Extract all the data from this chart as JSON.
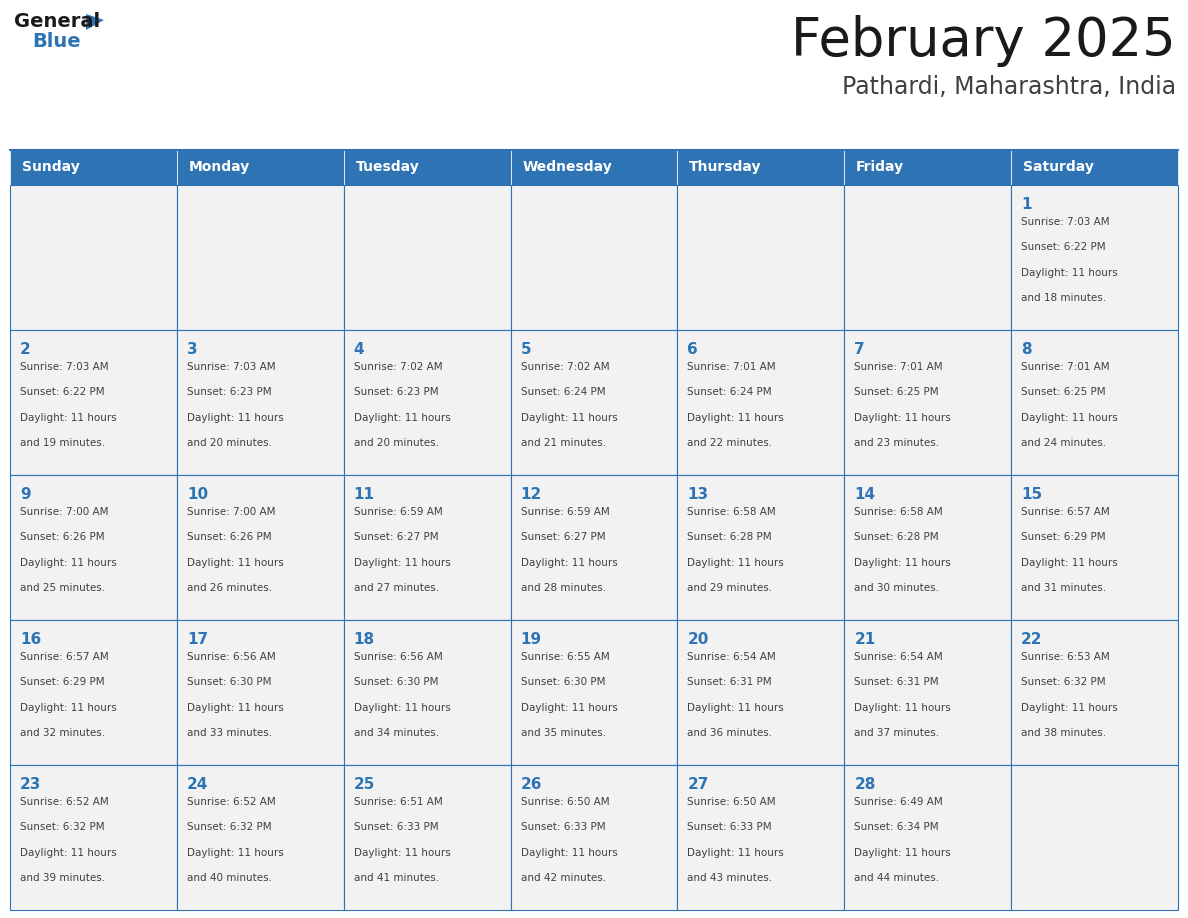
{
  "title": "February 2025",
  "subtitle": "Pathardi, Maharashtra, India",
  "days_of_week": [
    "Sunday",
    "Monday",
    "Tuesday",
    "Wednesday",
    "Thursday",
    "Friday",
    "Saturday"
  ],
  "header_bg": "#2E74B5",
  "header_text": "#FFFFFF",
  "cell_border": "#2E74B5",
  "day_num_color": "#2E74B5",
  "cell_text_color": "#404040",
  "cell_bg": "#F2F2F2",
  "bg_color": "#FFFFFF",
  "title_color": "#1a1a1a",
  "subtitle_color": "#404040",
  "logo_general_color": "#1a1a1a",
  "logo_blue_color": "#2E74B5",
  "calendar": [
    [
      null,
      null,
      null,
      null,
      null,
      null,
      1
    ],
    [
      2,
      3,
      4,
      5,
      6,
      7,
      8
    ],
    [
      9,
      10,
      11,
      12,
      13,
      14,
      15
    ],
    [
      16,
      17,
      18,
      19,
      20,
      21,
      22
    ],
    [
      23,
      24,
      25,
      26,
      27,
      28,
      null
    ]
  ],
  "cell_data": {
    "1": {
      "sunrise": "7:03 AM",
      "sunset": "6:22 PM",
      "daylight_hours": "11",
      "daylight_minutes": "18"
    },
    "2": {
      "sunrise": "7:03 AM",
      "sunset": "6:22 PM",
      "daylight_hours": "11",
      "daylight_minutes": "19"
    },
    "3": {
      "sunrise": "7:03 AM",
      "sunset": "6:23 PM",
      "daylight_hours": "11",
      "daylight_minutes": "20"
    },
    "4": {
      "sunrise": "7:02 AM",
      "sunset": "6:23 PM",
      "daylight_hours": "11",
      "daylight_minutes": "20"
    },
    "5": {
      "sunrise": "7:02 AM",
      "sunset": "6:24 PM",
      "daylight_hours": "11",
      "daylight_minutes": "21"
    },
    "6": {
      "sunrise": "7:01 AM",
      "sunset": "6:24 PM",
      "daylight_hours": "11",
      "daylight_minutes": "22"
    },
    "7": {
      "sunrise": "7:01 AM",
      "sunset": "6:25 PM",
      "daylight_hours": "11",
      "daylight_minutes": "23"
    },
    "8": {
      "sunrise": "7:01 AM",
      "sunset": "6:25 PM",
      "daylight_hours": "11",
      "daylight_minutes": "24"
    },
    "9": {
      "sunrise": "7:00 AM",
      "sunset": "6:26 PM",
      "daylight_hours": "11",
      "daylight_minutes": "25"
    },
    "10": {
      "sunrise": "7:00 AM",
      "sunset": "6:26 PM",
      "daylight_hours": "11",
      "daylight_minutes": "26"
    },
    "11": {
      "sunrise": "6:59 AM",
      "sunset": "6:27 PM",
      "daylight_hours": "11",
      "daylight_minutes": "27"
    },
    "12": {
      "sunrise": "6:59 AM",
      "sunset": "6:27 PM",
      "daylight_hours": "11",
      "daylight_minutes": "28"
    },
    "13": {
      "sunrise": "6:58 AM",
      "sunset": "6:28 PM",
      "daylight_hours": "11",
      "daylight_minutes": "29"
    },
    "14": {
      "sunrise": "6:58 AM",
      "sunset": "6:28 PM",
      "daylight_hours": "11",
      "daylight_minutes": "30"
    },
    "15": {
      "sunrise": "6:57 AM",
      "sunset": "6:29 PM",
      "daylight_hours": "11",
      "daylight_minutes": "31"
    },
    "16": {
      "sunrise": "6:57 AM",
      "sunset": "6:29 PM",
      "daylight_hours": "11",
      "daylight_minutes": "32"
    },
    "17": {
      "sunrise": "6:56 AM",
      "sunset": "6:30 PM",
      "daylight_hours": "11",
      "daylight_minutes": "33"
    },
    "18": {
      "sunrise": "6:56 AM",
      "sunset": "6:30 PM",
      "daylight_hours": "11",
      "daylight_minutes": "34"
    },
    "19": {
      "sunrise": "6:55 AM",
      "sunset": "6:30 PM",
      "daylight_hours": "11",
      "daylight_minutes": "35"
    },
    "20": {
      "sunrise": "6:54 AM",
      "sunset": "6:31 PM",
      "daylight_hours": "11",
      "daylight_minutes": "36"
    },
    "21": {
      "sunrise": "6:54 AM",
      "sunset": "6:31 PM",
      "daylight_hours": "11",
      "daylight_minutes": "37"
    },
    "22": {
      "sunrise": "6:53 AM",
      "sunset": "6:32 PM",
      "daylight_hours": "11",
      "daylight_minutes": "38"
    },
    "23": {
      "sunrise": "6:52 AM",
      "sunset": "6:32 PM",
      "daylight_hours": "11",
      "daylight_minutes": "39"
    },
    "24": {
      "sunrise": "6:52 AM",
      "sunset": "6:32 PM",
      "daylight_hours": "11",
      "daylight_minutes": "40"
    },
    "25": {
      "sunrise": "6:51 AM",
      "sunset": "6:33 PM",
      "daylight_hours": "11",
      "daylight_minutes": "41"
    },
    "26": {
      "sunrise": "6:50 AM",
      "sunset": "6:33 PM",
      "daylight_hours": "11",
      "daylight_minutes": "42"
    },
    "27": {
      "sunrise": "6:50 AM",
      "sunset": "6:33 PM",
      "daylight_hours": "11",
      "daylight_minutes": "43"
    },
    "28": {
      "sunrise": "6:49 AM",
      "sunset": "6:34 PM",
      "daylight_hours": "11",
      "daylight_minutes": "44"
    }
  }
}
